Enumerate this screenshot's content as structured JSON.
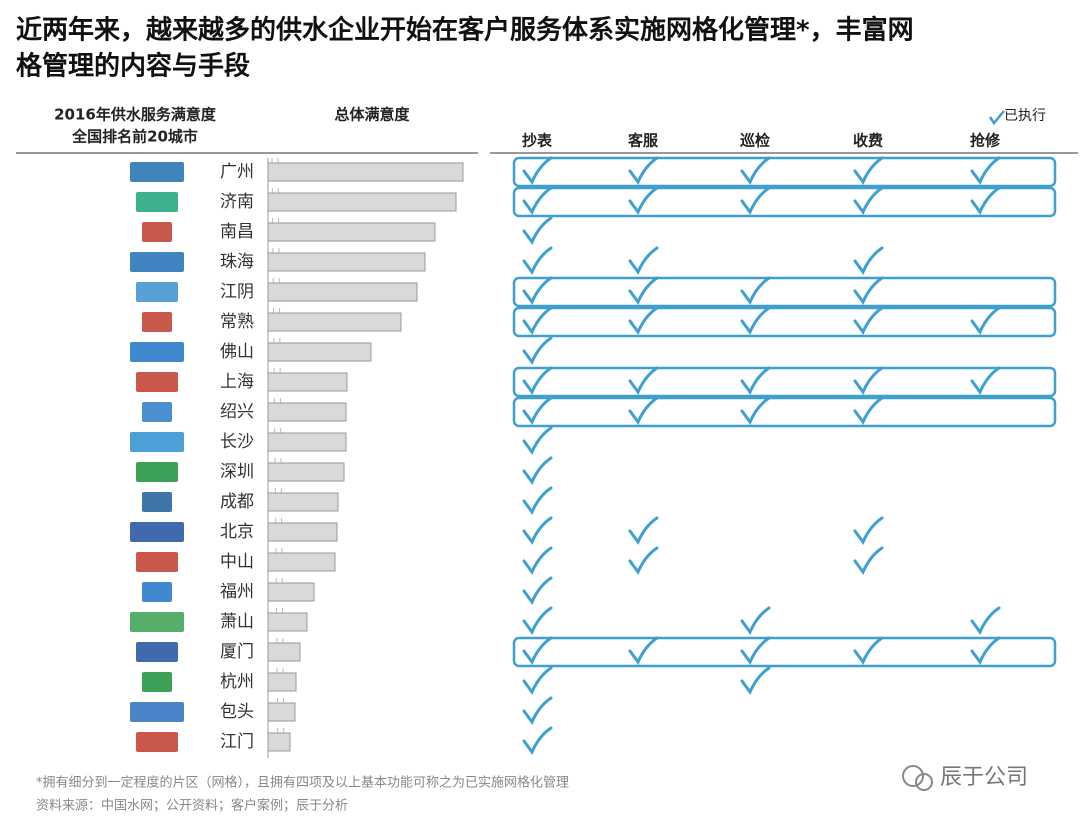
{
  "title_line1": "近两年来，越来越多的供水企业开始在客户服务体系实施网格化管理*，丰富网",
  "title_line2": "格管理的内容与手段",
  "chart_data": {
    "type": "bar",
    "orientation": "horizontal",
    "header_line1": "2016年供水服务满意度",
    "header_line2": "全国排名前20城市",
    "value_title": "总体满意度",
    "categories": [
      "广州",
      "济南",
      "南昌",
      "珠海",
      "江阴",
      "常熟",
      "佛山",
      "上海",
      "绍兴",
      "长沙",
      "深圳",
      "成都",
      "北京",
      "中山",
      "福州",
      "萧山",
      "厦门",
      "杭州",
      "包头",
      "江门"
    ],
    "values": [
      97.5,
      94,
      83.5,
      78.5,
      74.5,
      66.5,
      51.5,
      39.5,
      39,
      39,
      38,
      35,
      34.5,
      33.5,
      23,
      19.5,
      16,
      14,
      13.5,
      11
    ],
    "xlim": [
      0,
      100
    ],
    "color": "#d9d9d9"
  },
  "checklist": {
    "legend": "已执行",
    "color": "#3ea0d0",
    "columns": [
      "抄表",
      "客服",
      "巡检",
      "收费",
      "抢修"
    ],
    "checks": [
      [
        true,
        true,
        true,
        true,
        true
      ],
      [
        true,
        true,
        true,
        true,
        true
      ],
      [
        true,
        false,
        false,
        false,
        false
      ],
      [
        true,
        true,
        false,
        true,
        false
      ],
      [
        true,
        true,
        true,
        true,
        false
      ],
      [
        true,
        true,
        true,
        true,
        true
      ],
      [
        true,
        false,
        false,
        false,
        false
      ],
      [
        true,
        true,
        true,
        true,
        true
      ],
      [
        true,
        true,
        true,
        true,
        false
      ],
      [
        true,
        false,
        false,
        false,
        false
      ],
      [
        true,
        false,
        false,
        false,
        false
      ],
      [
        true,
        false,
        false,
        false,
        false
      ],
      [
        true,
        true,
        false,
        true,
        false
      ],
      [
        true,
        true,
        false,
        true,
        false
      ],
      [
        true,
        false,
        false,
        false,
        false
      ],
      [
        true,
        false,
        true,
        false,
        true
      ],
      [
        true,
        true,
        true,
        true,
        true
      ],
      [
        true,
        false,
        true,
        false,
        false
      ],
      [
        true,
        false,
        false,
        false,
        false
      ],
      [
        true,
        false,
        false,
        false,
        false
      ]
    ],
    "highlight": [
      true,
      true,
      false,
      false,
      true,
      true,
      false,
      true,
      true,
      false,
      false,
      false,
      false,
      false,
      false,
      false,
      true,
      false,
      false,
      false
    ]
  },
  "footnote": "*拥有细分到一定程度的片区（网格），且拥有四项及以上基本功能可称之为已实施网格化管理",
  "source": "资料来源：中国水网；公开资料；客户案例；辰于分析",
  "watermark": "辰于公司"
}
